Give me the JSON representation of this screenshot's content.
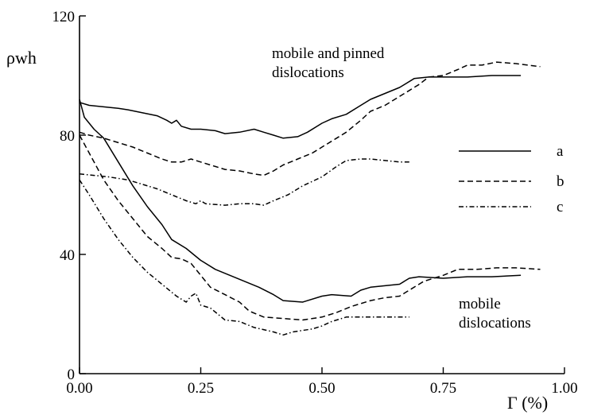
{
  "chart_data": {
    "type": "line",
    "xlabel": "Γ (%)",
    "ylabel": "ρwh",
    "xlim": [
      0,
      1.0
    ],
    "ylim": [
      0,
      120
    ],
    "x_ticks": [
      {
        "value": 0,
        "label": "0.00"
      },
      {
        "value": 0.25,
        "label": "0.25"
      },
      {
        "value": 0.5,
        "label": "0.50"
      },
      {
        "value": 0.75,
        "label": "0.75"
      },
      {
        "value": 1.0,
        "label": "1.00"
      }
    ],
    "y_ticks": [
      {
        "value": 0,
        "label": "0"
      },
      {
        "value": 40,
        "label": "40"
      },
      {
        "value": 80,
        "label": "80"
      },
      {
        "value": 120,
        "label": "120"
      }
    ],
    "grid": false,
    "legend_position": "right",
    "annotations": [
      {
        "lines": [
          "mobile and pinned",
          "dislocations"
        ],
        "x": 0.36,
        "y": 105
      },
      {
        "lines": [
          "mobile",
          "dislocations"
        ],
        "x": 0.7,
        "y": 23
      }
    ],
    "series": [
      {
        "name": "a",
        "style": "solid",
        "group": "mobile and pinned dislocations",
        "points": [
          [
            0,
            91
          ],
          [
            0.02,
            90
          ],
          [
            0.05,
            89.5
          ],
          [
            0.08,
            89
          ],
          [
            0.1,
            88.5
          ],
          [
            0.13,
            87.5
          ],
          [
            0.16,
            86.5
          ],
          [
            0.18,
            85
          ],
          [
            0.19,
            84
          ],
          [
            0.2,
            85
          ],
          [
            0.21,
            83
          ],
          [
            0.23,
            82
          ],
          [
            0.25,
            82
          ],
          [
            0.28,
            81.5
          ],
          [
            0.3,
            80.5
          ],
          [
            0.33,
            81
          ],
          [
            0.36,
            82
          ],
          [
            0.38,
            81
          ],
          [
            0.4,
            80
          ],
          [
            0.42,
            79
          ],
          [
            0.45,
            79.5
          ],
          [
            0.47,
            81
          ],
          [
            0.5,
            84
          ],
          [
            0.52,
            85.5
          ],
          [
            0.55,
            87
          ],
          [
            0.58,
            90
          ],
          [
            0.6,
            92
          ],
          [
            0.63,
            94
          ],
          [
            0.66,
            96
          ],
          [
            0.69,
            99
          ],
          [
            0.72,
            99.5
          ],
          [
            0.75,
            99.5
          ],
          [
            0.8,
            99.5
          ],
          [
            0.85,
            100
          ],
          [
            0.91,
            100
          ]
        ]
      },
      {
        "name": "b",
        "style": "dashed",
        "group": "mobile and pinned dislocations",
        "points": [
          [
            0,
            81
          ],
          [
            0.02,
            80
          ],
          [
            0.05,
            79
          ],
          [
            0.08,
            77.5
          ],
          [
            0.11,
            76
          ],
          [
            0.14,
            74
          ],
          [
            0.17,
            72
          ],
          [
            0.19,
            71
          ],
          [
            0.21,
            71
          ],
          [
            0.23,
            72
          ],
          [
            0.25,
            71
          ],
          [
            0.28,
            69.5
          ],
          [
            0.3,
            68.5
          ],
          [
            0.33,
            68
          ],
          [
            0.36,
            67
          ],
          [
            0.38,
            66.5
          ],
          [
            0.4,
            68
          ],
          [
            0.42,
            70
          ],
          [
            0.45,
            72
          ],
          [
            0.48,
            74
          ],
          [
            0.5,
            76
          ],
          [
            0.53,
            79
          ],
          [
            0.55,
            81
          ],
          [
            0.58,
            85
          ],
          [
            0.6,
            88
          ],
          [
            0.63,
            90
          ],
          [
            0.65,
            92
          ],
          [
            0.68,
            95
          ],
          [
            0.7,
            97
          ],
          [
            0.72,
            99.5
          ],
          [
            0.75,
            100
          ],
          [
            0.78,
            102
          ],
          [
            0.8,
            103.5
          ],
          [
            0.83,
            103.5
          ],
          [
            0.86,
            104.5
          ],
          [
            0.9,
            104
          ],
          [
            0.95,
            103
          ]
        ]
      },
      {
        "name": "c",
        "style": "dashdot",
        "group": "mobile and pinned dislocations",
        "points": [
          [
            0,
            67
          ],
          [
            0.03,
            66.5
          ],
          [
            0.06,
            66
          ],
          [
            0.1,
            65
          ],
          [
            0.13,
            63.5
          ],
          [
            0.16,
            62
          ],
          [
            0.19,
            60
          ],
          [
            0.22,
            58
          ],
          [
            0.24,
            57
          ],
          [
            0.25,
            58
          ],
          [
            0.26,
            57
          ],
          [
            0.3,
            56.5
          ],
          [
            0.33,
            57
          ],
          [
            0.36,
            57
          ],
          [
            0.38,
            56.5
          ],
          [
            0.4,
            58
          ],
          [
            0.43,
            60
          ],
          [
            0.46,
            63
          ],
          [
            0.5,
            66
          ],
          [
            0.53,
            69.5
          ],
          [
            0.55,
            71.5
          ],
          [
            0.58,
            72
          ],
          [
            0.6,
            72
          ],
          [
            0.63,
            71.5
          ],
          [
            0.66,
            71
          ],
          [
            0.68,
            71
          ]
        ]
      },
      {
        "name": "a",
        "style": "solid",
        "group": "mobile dislocations",
        "points": [
          [
            0,
            92
          ],
          [
            0.01,
            86
          ],
          [
            0.03,
            82
          ],
          [
            0.05,
            79
          ],
          [
            0.08,
            71
          ],
          [
            0.11,
            63
          ],
          [
            0.14,
            56
          ],
          [
            0.17,
            50
          ],
          [
            0.19,
            45
          ],
          [
            0.22,
            42
          ],
          [
            0.25,
            38
          ],
          [
            0.28,
            35
          ],
          [
            0.31,
            33
          ],
          [
            0.34,
            31
          ],
          [
            0.37,
            29
          ],
          [
            0.4,
            26.5
          ],
          [
            0.42,
            24.5
          ],
          [
            0.46,
            24
          ],
          [
            0.5,
            26
          ],
          [
            0.52,
            26.5
          ],
          [
            0.56,
            26
          ],
          [
            0.58,
            28
          ],
          [
            0.6,
            29
          ],
          [
            0.63,
            29.5
          ],
          [
            0.66,
            30
          ],
          [
            0.68,
            32
          ],
          [
            0.7,
            32.5
          ],
          [
            0.75,
            32
          ],
          [
            0.8,
            32.5
          ],
          [
            0.85,
            32.5
          ],
          [
            0.91,
            33
          ]
        ]
      },
      {
        "name": "b",
        "style": "dashed",
        "group": "mobile dislocations",
        "points": [
          [
            0,
            80
          ],
          [
            0.02,
            74
          ],
          [
            0.05,
            65
          ],
          [
            0.08,
            58
          ],
          [
            0.11,
            52
          ],
          [
            0.14,
            46
          ],
          [
            0.17,
            42
          ],
          [
            0.19,
            39
          ],
          [
            0.21,
            38.5
          ],
          [
            0.23,
            37
          ],
          [
            0.25,
            33
          ],
          [
            0.27,
            29
          ],
          [
            0.3,
            26.5
          ],
          [
            0.33,
            24
          ],
          [
            0.35,
            21
          ],
          [
            0.38,
            19
          ],
          [
            0.42,
            18.5
          ],
          [
            0.46,
            18
          ],
          [
            0.5,
            19
          ],
          [
            0.53,
            20.5
          ],
          [
            0.56,
            22.5
          ],
          [
            0.6,
            24.5
          ],
          [
            0.63,
            25.5
          ],
          [
            0.66,
            26
          ],
          [
            0.68,
            28
          ],
          [
            0.71,
            31
          ],
          [
            0.75,
            33
          ],
          [
            0.78,
            35
          ],
          [
            0.82,
            35
          ],
          [
            0.86,
            35.5
          ],
          [
            0.9,
            35.5
          ],
          [
            0.95,
            35
          ]
        ]
      },
      {
        "name": "c",
        "style": "dashdot",
        "group": "mobile dislocations",
        "points": [
          [
            0,
            65
          ],
          [
            0.02,
            60
          ],
          [
            0.05,
            52
          ],
          [
            0.08,
            45
          ],
          [
            0.11,
            39
          ],
          [
            0.14,
            34
          ],
          [
            0.17,
            30
          ],
          [
            0.2,
            26
          ],
          [
            0.22,
            24
          ],
          [
            0.23,
            26
          ],
          [
            0.24,
            27
          ],
          [
            0.25,
            23
          ],
          [
            0.27,
            22
          ],
          [
            0.3,
            18
          ],
          [
            0.33,
            17.5
          ],
          [
            0.36,
            15.5
          ],
          [
            0.4,
            14
          ],
          [
            0.42,
            13
          ],
          [
            0.44,
            14
          ],
          [
            0.46,
            14.5
          ],
          [
            0.48,
            15
          ],
          [
            0.5,
            16
          ],
          [
            0.52,
            17.5
          ],
          [
            0.55,
            19
          ],
          [
            0.6,
            19
          ],
          [
            0.64,
            19
          ],
          [
            0.68,
            19
          ]
        ]
      }
    ],
    "legend": [
      {
        "label": "a",
        "style": "solid"
      },
      {
        "label": "b",
        "style": "dashed"
      },
      {
        "label": "c",
        "style": "dashdot"
      }
    ]
  }
}
